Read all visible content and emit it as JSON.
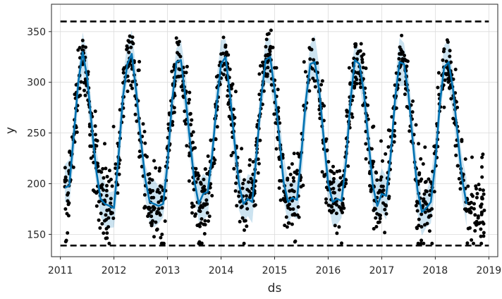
{
  "chart_data": {
    "type": "scatter",
    "title": "",
    "xlabel": "ds",
    "ylabel": "y",
    "xlim": [
      "2010-11-01",
      "2019-03-01"
    ],
    "ylim": [
      128,
      377
    ],
    "grid": true,
    "x_ticks": [
      "2011",
      "2012",
      "2013",
      "2014",
      "2015",
      "2016",
      "2017",
      "2018",
      "2019"
    ],
    "y_ticks": [
      150,
      200,
      250,
      300,
      350
    ],
    "cap": 360,
    "floor": 139,
    "observed_range": [
      "2011-02-01",
      "2018-12-01"
    ],
    "forecast_monthly": {
      "start": "2011-02",
      "values": [
        196,
        198,
        248,
        300,
        330,
        305,
        258,
        214,
        185,
        180,
        178,
        176,
        225,
        285,
        318,
        328,
        290,
        245,
        205,
        182,
        180,
        178,
        180,
        220,
        280,
        320,
        322,
        286,
        244,
        203,
        180,
        190,
        192,
        228,
        278,
        318,
        325,
        288,
        242,
        200,
        180,
        185,
        182,
        232,
        285,
        322,
        325,
        292,
        248,
        202,
        182,
        186,
        184,
        230,
        282,
        318,
        320,
        292,
        245,
        200,
        182,
        185,
        183,
        222,
        282,
        322,
        318,
        290,
        244,
        198,
        178,
        190,
        188,
        228,
        284,
        320,
        318,
        288,
        240,
        194,
        172,
        176,
        182,
        220,
        278,
        315,
        320,
        292,
        248,
        205,
        180
      ]
    },
    "interval_halfwidth": 20,
    "series": [
      {
        "type": "scatter",
        "color": "#000000"
      },
      {
        "type": "line",
        "color": "#0072B2"
      },
      {
        "type": "band",
        "color": "#0072B2",
        "opacity": 0.2
      },
      {
        "type": "hline",
        "color": "#000000",
        "dash": true
      }
    ],
    "observations": {
      "count": 1400,
      "seed": 7
    }
  }
}
